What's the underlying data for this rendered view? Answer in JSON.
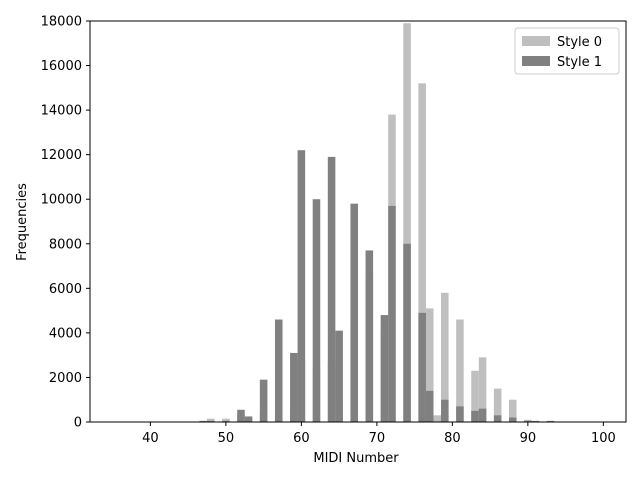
{
  "chart_data": {
    "type": "bar",
    "title": "",
    "xlabel": "MIDI Number",
    "ylabel": "Frequencies",
    "xlim": [
      32,
      103
    ],
    "ylim": [
      0,
      18000
    ],
    "xticks": [
      40,
      50,
      60,
      70,
      80,
      90,
      100
    ],
    "yticks": [
      0,
      2000,
      4000,
      6000,
      8000,
      10000,
      12000,
      14000,
      16000,
      18000
    ],
    "legend_position": "top-right",
    "bar_width": 1,
    "series": [
      {
        "name": "Style 0",
        "color": "#bfbfbf",
        "x": [
          43,
          45,
          47,
          48,
          49,
          50,
          52,
          53,
          55,
          57,
          59,
          60,
          62,
          64,
          65,
          67,
          69,
          71,
          72,
          74,
          76,
          77,
          78,
          79,
          81,
          83,
          84,
          86,
          88,
          90
        ],
        "values": [
          20,
          20,
          40,
          150,
          20,
          150,
          300,
          200,
          400,
          300,
          800,
          2800,
          2400,
          2700,
          1000,
          4400,
          6600,
          4100,
          13800,
          17900,
          15200,
          5100,
          300,
          5800,
          4600,
          2300,
          2900,
          1500,
          1000,
          100
        ]
      },
      {
        "name": "Style 1",
        "color": "#808080",
        "x": [
          41,
          43,
          45,
          47,
          48,
          50,
          52,
          53,
          55,
          57,
          59,
          60,
          62,
          64,
          65,
          67,
          69,
          71,
          72,
          74,
          76,
          77,
          79,
          81,
          83,
          84,
          86,
          88,
          90,
          91,
          93,
          96
        ],
        "values": [
          20,
          20,
          20,
          50,
          50,
          50,
          550,
          250,
          1900,
          4600,
          3100,
          12200,
          10000,
          11900,
          4100,
          9800,
          7700,
          4800,
          9700,
          8000,
          4900,
          1400,
          1000,
          700,
          500,
          600,
          300,
          200,
          50,
          50,
          50,
          20
        ]
      }
    ]
  }
}
